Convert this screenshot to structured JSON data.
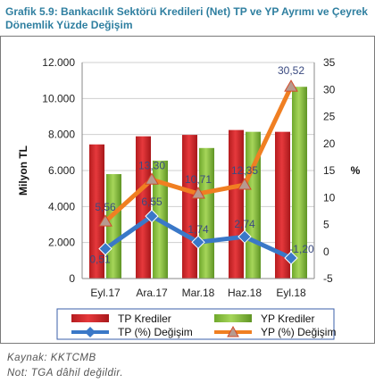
{
  "title": "Grafik 5.9: Bankacılık Sektörü Kredileri (Net) TP ve YP Ayrımı ve Çeyrek Dönemlik Yüzde Değişim",
  "source": "Kaynak: KKTCMB",
  "note": "Not: TGA dâhil değildir.",
  "colors": {
    "tp_bar": "#d8272b",
    "yp_bar": "#8cc63f",
    "tp_line": "#3a78c8",
    "yp_line": "#f07f22",
    "title": "#2f7fa0"
  },
  "chart_data": {
    "type": "bar",
    "categories": [
      "Eyl.17",
      "Ara.17",
      "Mar.18",
      "Haz.18",
      "Eyl.18"
    ],
    "ylabel": "Milyon TL",
    "y2label": "%",
    "ylim": [
      0,
      12000
    ],
    "y2lim": [
      -5,
      35
    ],
    "y_ticks": [
      "0",
      "2.000",
      "4.000",
      "6.000",
      "8.000",
      "10.000",
      "12.000"
    ],
    "y2_ticks": [
      "-5",
      "0",
      "5",
      "10",
      "15",
      "20",
      "25",
      "30",
      "35"
    ],
    "grid": true,
    "legend_position": "bottom",
    "series": [
      {
        "name": "TP Krediler",
        "type": "bar",
        "axis": "left",
        "values": [
          7450,
          7900,
          7980,
          8250,
          8150
        ]
      },
      {
        "name": "YP Krediler",
        "type": "bar",
        "axis": "left",
        "values": [
          5800,
          6550,
          7250,
          8150,
          10650
        ]
      },
      {
        "name": "TP (%) Değişim",
        "type": "line",
        "axis": "right",
        "values": [
          0.51,
          6.55,
          1.74,
          2.74,
          -1.2
        ],
        "labels": [
          "0,51",
          "6,55",
          "1,74",
          "2,74",
          "-1,20"
        ]
      },
      {
        "name": "YP (%) Değişim",
        "type": "line",
        "axis": "right",
        "values": [
          5.56,
          13.3,
          10.71,
          12.35,
          30.52
        ],
        "labels": [
          "5,56",
          "13,30",
          "10,71",
          "12,35",
          "30,52"
        ]
      }
    ]
  }
}
